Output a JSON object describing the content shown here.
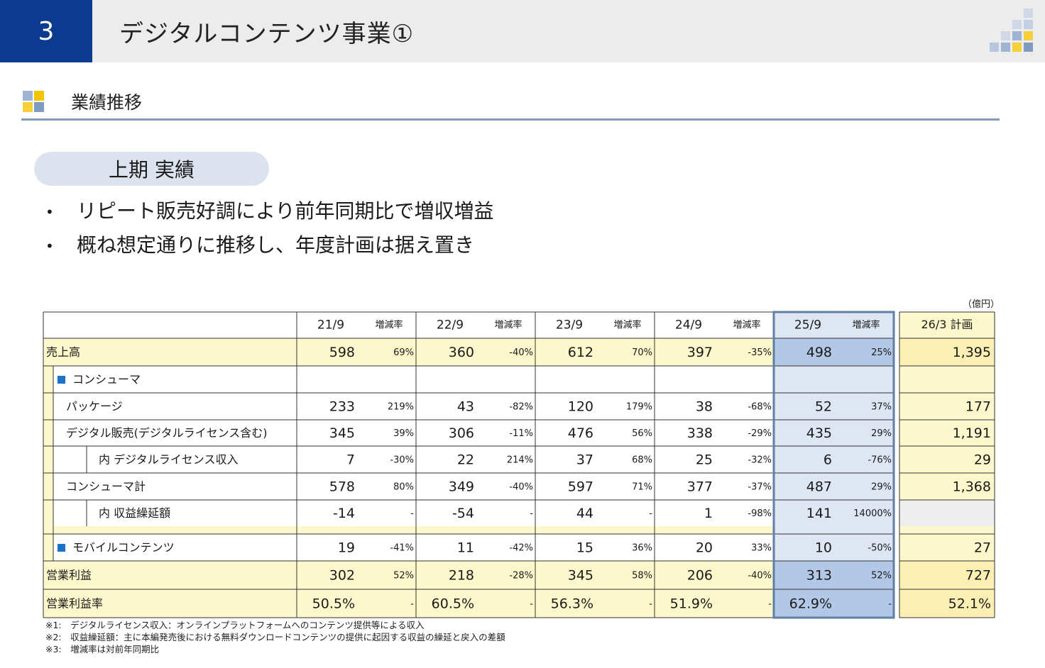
{
  "header": {
    "page_number": "3",
    "title": "デジタルコンテンツ事業①"
  },
  "section": {
    "title": "業績推移"
  },
  "subsection": {
    "label": "上期 実績"
  },
  "bullets": [
    "リピート販売好調により前年同期比で増収増益",
    "概ね想定通りに推移し、年度計画は据え置き"
  ],
  "table": {
    "unit": "（億円）",
    "periods": [
      "21/9",
      "22/9",
      "23/9",
      "24/9",
      "25/9"
    ],
    "rate_label": "増減率",
    "plan_label": "26/3 計画",
    "rows": [
      {
        "label": "売上高",
        "values": [
          "598",
          "360",
          "612",
          "397",
          "498"
        ],
        "rates": [
          "69%",
          "-40%",
          "70%",
          "-35%",
          "25%"
        ],
        "plan": "1,395"
      },
      {
        "label": "■ コンシューマ",
        "values": [
          "",
          "",
          "",
          "",
          ""
        ],
        "rates": [
          "",
          "",
          "",
          "",
          ""
        ],
        "plan": ""
      },
      {
        "label": "パッケージ",
        "values": [
          "233",
          "43",
          "120",
          "38",
          "52"
        ],
        "rates": [
          "219%",
          "-82%",
          "179%",
          "-68%",
          "37%"
        ],
        "plan": "177"
      },
      {
        "label": "デジタル販売(デジタルライセンス含む)",
        "values": [
          "345",
          "306",
          "476",
          "338",
          "435"
        ],
        "rates": [
          "39%",
          "-11%",
          "56%",
          "-29%",
          "29%"
        ],
        "plan": "1,191"
      },
      {
        "label": "内 デジタルライセンス収入",
        "values": [
          "7",
          "22",
          "37",
          "25",
          "6"
        ],
        "rates": [
          "-30%",
          "214%",
          "68%",
          "-32%",
          "-76%"
        ],
        "plan": "29"
      },
      {
        "label": "コンシューマ計",
        "values": [
          "578",
          "349",
          "597",
          "377",
          "487"
        ],
        "rates": [
          "80%",
          "-40%",
          "71%",
          "-37%",
          "29%"
        ],
        "plan": "1,368"
      },
      {
        "label": "内 収益繰延額",
        "values": [
          "-14",
          "-54",
          "44",
          "1",
          "141"
        ],
        "rates": [
          "-",
          "-",
          "-",
          "-98%",
          "14000%"
        ],
        "plan": ""
      },
      {
        "label": "■ モバイルコンテンツ",
        "values": [
          "19",
          "11",
          "15",
          "20",
          "10"
        ],
        "rates": [
          "-41%",
          "-42%",
          "36%",
          "33%",
          "-50%"
        ],
        "plan": "27"
      },
      {
        "label": "営業利益",
        "values": [
          "302",
          "218",
          "345",
          "206",
          "313"
        ],
        "rates": [
          "52%",
          "-28%",
          "58%",
          "-40%",
          "52%"
        ],
        "plan": "727"
      },
      {
        "label": "営業利益率",
        "values": [
          "50.5%",
          "60.5%",
          "56.3%",
          "51.9%",
          "62.9%"
        ],
        "rates": [
          "-",
          "-",
          "-",
          "-",
          "-"
        ],
        "plan": "52.1%"
      }
    ]
  },
  "notes": [
    "※1:　デジタルライセンス収入：オンラインプラットフォームへのコンテンツ提供等による収入",
    "※2:　収益繰延額：主に本編発売後における無料ダウンロードコンテンツの提供に起因する収益の繰延と戻入の差額",
    "※3:　増減率は対前年同期比"
  ],
  "colors": {
    "header_blue": "#0b3a8f",
    "row_yellow": "#fdf8cc",
    "plan_yellow": "#fcefb4",
    "highlight_blue": "#dde6f2",
    "highlight_blue_dark": "#b3c8e6",
    "border_blue": "#5f7fa6",
    "square_blue": "#1a73c8"
  }
}
